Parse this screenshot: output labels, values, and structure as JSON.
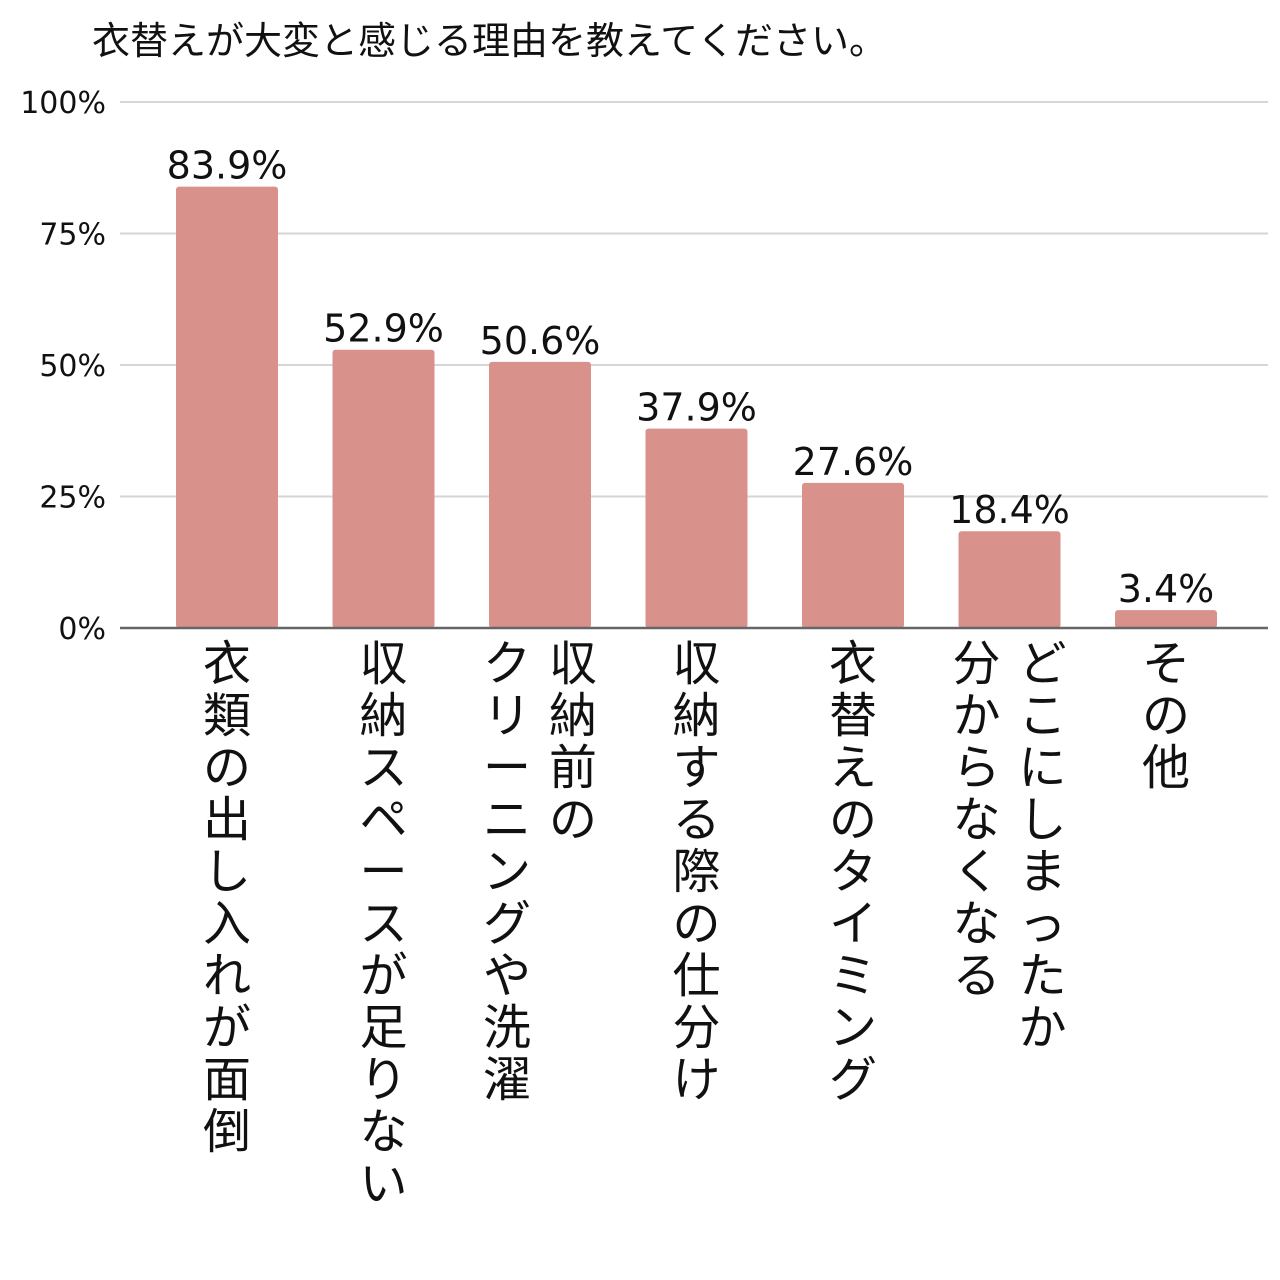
{
  "chart_data": {
    "type": "bar",
    "title": "衣替えが大変と感じる理由を教えてください。",
    "xlabel": "",
    "ylabel": "",
    "ylim": [
      0,
      100
    ],
    "y_ticks": [
      "0%",
      "25%",
      "50%",
      "75%",
      "100%"
    ],
    "y_tick_values": [
      0,
      25,
      50,
      75,
      100
    ],
    "grid": true,
    "bar_color": "#d9918c",
    "categories": [
      "衣類の出し入れが面倒",
      "収納スペースが足りない",
      "収納前のクリーニングや洗濯",
      "収納する際の仕分け",
      "衣替えのタイミング",
      "どこにしまったか分からなくなる",
      "その他"
    ],
    "category_columns": [
      [
        "衣類の出し入れが面倒"
      ],
      [
        "収納スペースが足りない"
      ],
      [
        "収納前の",
        "クリーニングや洗濯"
      ],
      [
        "収納する際の仕分け"
      ],
      [
        "衣替えのタイミング"
      ],
      [
        "どこにしまったか",
        "分からなくなる"
      ],
      [
        "その他"
      ]
    ],
    "values": [
      83.9,
      52.9,
      50.6,
      37.9,
      27.6,
      18.4,
      3.4
    ],
    "value_labels": [
      "83.9%",
      "52.9%",
      "50.6%",
      "37.9%",
      "27.6%",
      "18.4%",
      "3.4%"
    ]
  }
}
